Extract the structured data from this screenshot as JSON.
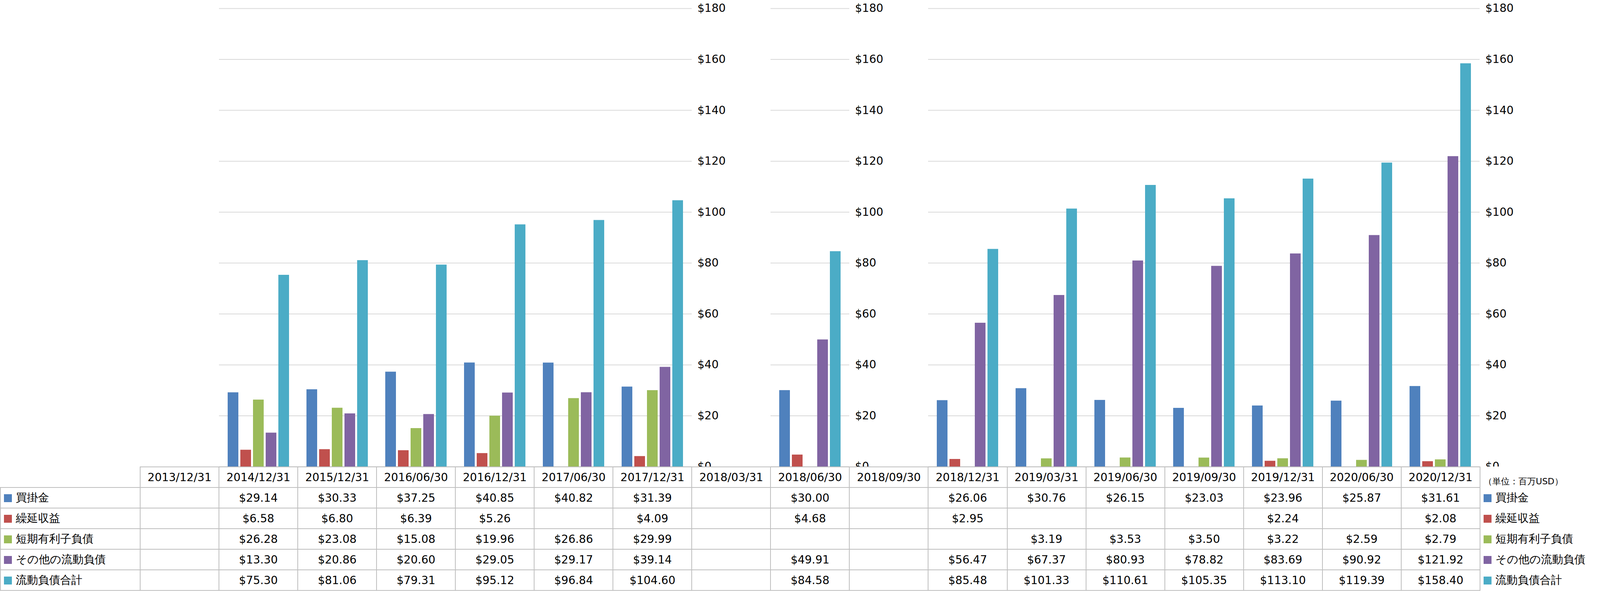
{
  "chart_data": {
    "type": "bar",
    "categories": [
      "2013/12/31",
      "2014/12/31",
      "2015/12/31",
      "2016/06/30",
      "2016/12/31",
      "2017/06/30",
      "2017/12/31",
      "2018/03/31",
      "2018/06/30",
      "2018/09/30",
      "2018/12/31",
      "2019/03/31",
      "2019/06/30",
      "2019/09/30",
      "2019/12/31",
      "2020/06/30",
      "2020/12/31"
    ],
    "series": [
      {
        "name": "買掛金",
        "color": "#4f81bd",
        "values": [
          null,
          29.14,
          30.33,
          37.25,
          40.85,
          40.82,
          31.39,
          null,
          30.0,
          null,
          26.06,
          30.76,
          26.15,
          23.03,
          23.96,
          25.87,
          31.61
        ],
        "value_labels": [
          null,
          "$29.14",
          "$30.33",
          "$37.25",
          "$40.85",
          "$40.82",
          "$31.39",
          null,
          "$30.00",
          null,
          "$26.06",
          "$30.76",
          "$26.15",
          "$23.03",
          "$23.96",
          "$25.87",
          "$31.61"
        ]
      },
      {
        "name": "繰延収益",
        "color": "#c0504d",
        "values": [
          null,
          6.58,
          6.8,
          6.39,
          5.26,
          null,
          4.09,
          null,
          4.68,
          null,
          2.95,
          null,
          null,
          null,
          2.24,
          null,
          2.08
        ],
        "value_labels": [
          null,
          "$6.58",
          "$6.80",
          "$6.39",
          "$5.26",
          null,
          "$4.09",
          null,
          "$4.68",
          null,
          "$2.95",
          null,
          null,
          null,
          "$2.24",
          null,
          "$2.08"
        ]
      },
      {
        "name": "短期有利子負債",
        "color": "#9bbb59",
        "values": [
          null,
          26.28,
          23.08,
          15.08,
          19.96,
          26.86,
          29.99,
          null,
          null,
          null,
          null,
          3.19,
          3.53,
          3.5,
          3.22,
          2.59,
          2.79
        ],
        "value_labels": [
          null,
          "$26.28",
          "$23.08",
          "$15.08",
          "$19.96",
          "$26.86",
          "$29.99",
          null,
          null,
          null,
          null,
          "$3.19",
          "$3.53",
          "$3.50",
          "$3.22",
          "$2.59",
          "$2.79"
        ]
      },
      {
        "name": "その他の流動負債",
        "color": "#8064a2",
        "values": [
          null,
          13.3,
          20.86,
          20.6,
          29.05,
          29.17,
          39.14,
          null,
          49.91,
          null,
          56.47,
          67.37,
          80.93,
          78.82,
          83.69,
          90.92,
          121.92
        ],
        "value_labels": [
          null,
          "$13.30",
          "$20.86",
          "$20.60",
          "$29.05",
          "$29.17",
          "$39.14",
          null,
          "$49.91",
          null,
          "$56.47",
          "$67.37",
          "$80.93",
          "$78.82",
          "$83.69",
          "$90.92",
          "$121.92"
        ]
      },
      {
        "name": "流動負債合計",
        "color": "#4bacc6",
        "values": [
          null,
          75.3,
          81.06,
          79.31,
          95.12,
          96.84,
          104.6,
          null,
          84.58,
          null,
          85.48,
          101.33,
          110.61,
          105.35,
          113.1,
          119.39,
          158.4
        ],
        "value_labels": [
          null,
          "$75.30",
          "$81.06",
          "$79.31",
          "$95.12",
          "$96.84",
          "$104.60",
          null,
          "$84.58",
          null,
          "$85.48",
          "$101.33",
          "$110.61",
          "$105.35",
          "$113.10",
          "$119.39",
          "$158.40"
        ]
      }
    ],
    "ylabel": "（単位：百万USD）",
    "ylim": [
      0,
      180
    ],
    "yticks": [
      {
        "value": 0,
        "label": "$0"
      },
      {
        "value": 20,
        "label": "$20"
      },
      {
        "value": 40,
        "label": "$40"
      },
      {
        "value": 60,
        "label": "$60"
      },
      {
        "value": 80,
        "label": "$80"
      },
      {
        "value": 100,
        "label": "$100"
      },
      {
        "value": 120,
        "label": "$120"
      },
      {
        "value": 140,
        "label": "$140"
      },
      {
        "value": 160,
        "label": "$160"
      },
      {
        "value": 180,
        "label": "$180"
      }
    ],
    "grid": true
  }
}
